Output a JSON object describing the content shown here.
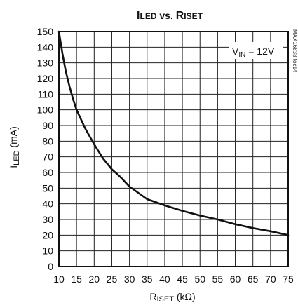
{
  "chart_data": {
    "type": "line",
    "title": {
      "part1_main": "I",
      "part1_sub": "LED",
      "middle": " vs. ",
      "part2_main": "R",
      "part2_sub": "ISET"
    },
    "xlabel": {
      "main": "R",
      "sub": "ISET",
      "rest": " (kΩ)"
    },
    "ylabel": {
      "main": "I",
      "sub": "LED",
      "rest": " (mA)"
    },
    "xlim": [
      10,
      75
    ],
    "ylim": [
      0,
      150
    ],
    "x_ticks": [
      10,
      15,
      20,
      25,
      30,
      35,
      40,
      45,
      50,
      55,
      60,
      65,
      70,
      75
    ],
    "y_ticks": [
      0,
      10,
      20,
      30,
      40,
      50,
      60,
      70,
      80,
      90,
      100,
      110,
      120,
      130,
      140,
      150
    ],
    "grid": true,
    "annotation": {
      "main": "V",
      "sub": "IN",
      "rest": " = 12V"
    },
    "side_label": "MAX16838 toc14",
    "series": [
      {
        "x": [
          10,
          11,
          12,
          13,
          14,
          15,
          17.5,
          20,
          22.5,
          25,
          27.5,
          30,
          32.5,
          35,
          40,
          45,
          50,
          55,
          60,
          65,
          70,
          75
        ],
        "y": [
          150,
          136,
          124,
          115,
          107,
          100,
          88,
          78,
          69,
          62,
          57,
          51,
          47,
          43,
          39,
          35.5,
          32.5,
          30,
          27,
          24.5,
          22.5,
          20
        ]
      }
    ]
  }
}
